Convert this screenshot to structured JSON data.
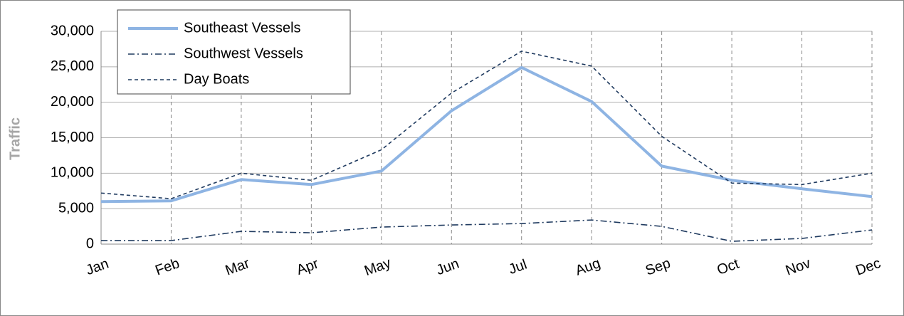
{
  "chart_data": {
    "type": "line",
    "y_label": "Traffic",
    "categories": [
      "Jan",
      "Feb",
      "Mar",
      "Apr",
      "May",
      "Jun",
      "Jul",
      "Aug",
      "Sep",
      "Oct",
      "Nov",
      "Dec"
    ],
    "series": [
      {
        "name": "Southeast Vessels",
        "color": "#8eb4e3",
        "dash": "solid",
        "values": [
          6000,
          6100,
          9100,
          8400,
          10300,
          18800,
          24900,
          20100,
          11000,
          9000,
          7800,
          6700
        ]
      },
      {
        "name": "Southwest Vessels",
        "color": "#1f3a5f",
        "dash": "dashdot",
        "values": [
          500,
          500,
          1800,
          1600,
          2400,
          2700,
          2900,
          3400,
          2500,
          400,
          800,
          2000
        ]
      },
      {
        "name": "Day Boats",
        "color": "#1f3a5f",
        "dash": "dashed",
        "values": [
          7200,
          6400,
          10000,
          9000,
          13300,
          21300,
          27200,
          25100,
          15200,
          8600,
          8400,
          10000
        ]
      }
    ],
    "ylim": [
      0,
      30000
    ],
    "yticks": [
      0,
      {
        "value": 5000,
        "label": "5,000"
      },
      {
        "value": 10000,
        "label": "10,000"
      },
      {
        "value": 15000,
        "label": "15,000"
      },
      {
        "value": 20000,
        "label": "20,000"
      },
      {
        "value": 25000,
        "label": "25,000"
      },
      {
        "value": 30000,
        "label": "30,000"
      }
    ],
    "grid": true,
    "legend": "upper left"
  }
}
